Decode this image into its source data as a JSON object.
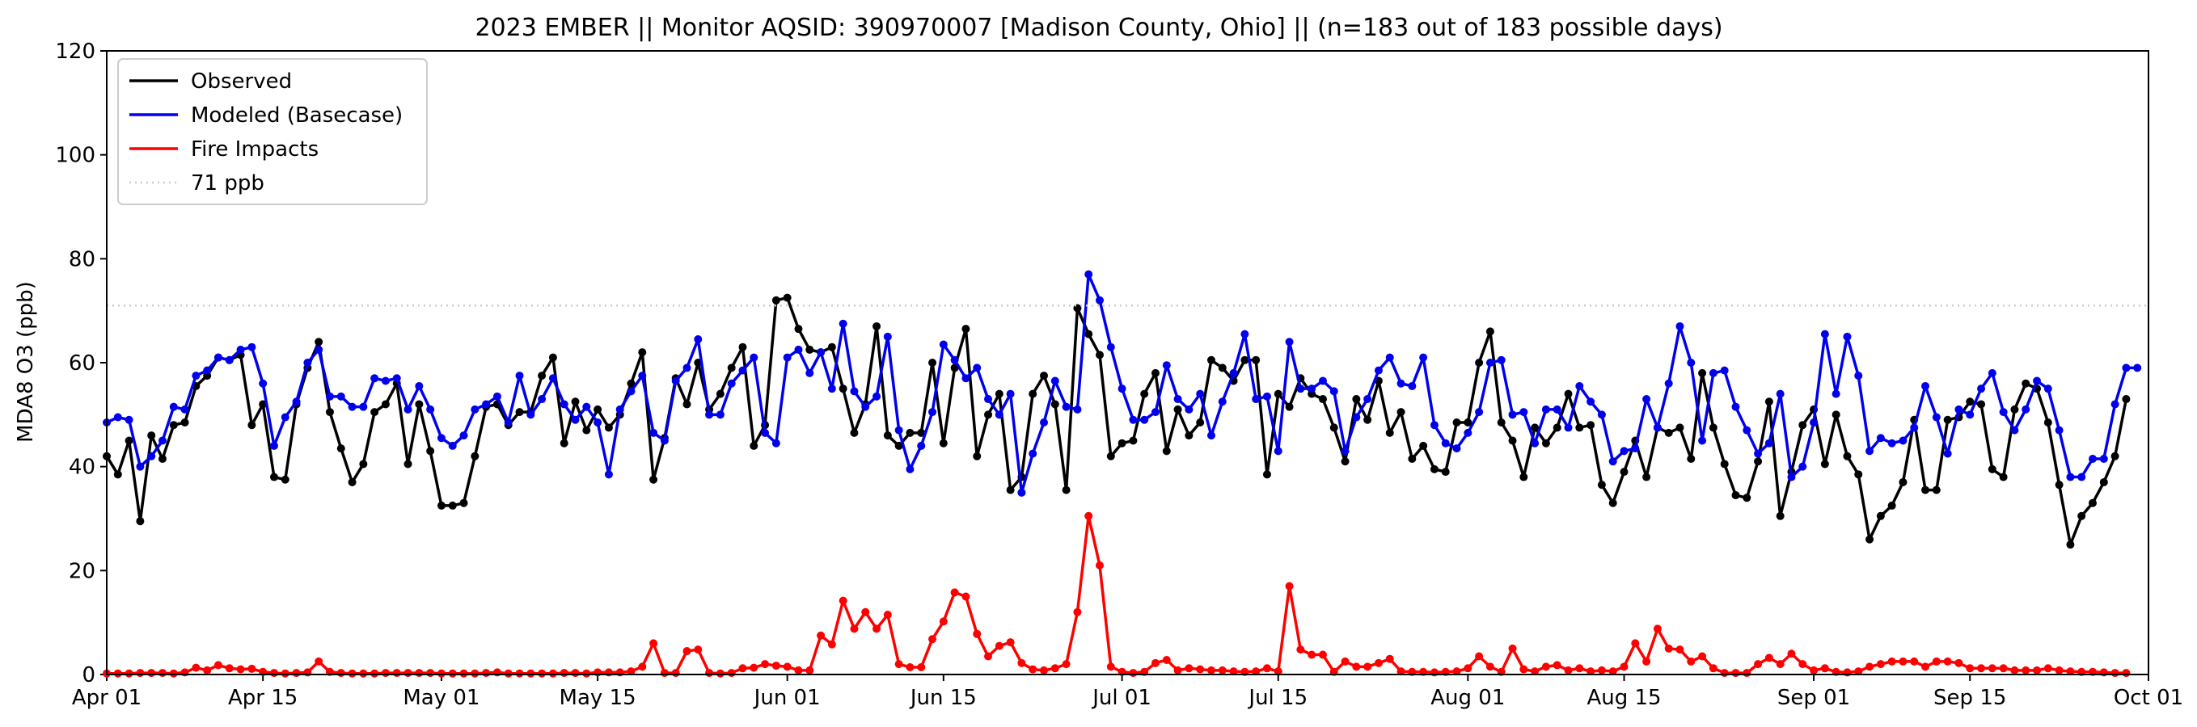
{
  "chart_data": {
    "type": "line",
    "title": "2023 EMBER || Monitor AQSID: 390970007 [Madison County, Ohio] || (n=183 out of 183 possible days)",
    "xlabel": "",
    "ylabel": "MDA8 O3 (ppb)",
    "x_start": "2023-04-01",
    "xlim": [
      "2023-04-01",
      "2023-10-01"
    ],
    "ylim": [
      0,
      120
    ],
    "yticks": [
      0,
      20,
      40,
      60,
      80,
      100,
      120
    ],
    "xticks": [
      {
        "label": "Apr 01",
        "day": 0
      },
      {
        "label": "Apr 15",
        "day": 14
      },
      {
        "label": "May 01",
        "day": 30
      },
      {
        "label": "May 15",
        "day": 44
      },
      {
        "label": "Jun 01",
        "day": 61
      },
      {
        "label": "Jun 15",
        "day": 75
      },
      {
        "label": "Jul 01",
        "day": 91
      },
      {
        "label": "Jul 15",
        "day": 105
      },
      {
        "label": "Aug 01",
        "day": 122
      },
      {
        "label": "Aug 15",
        "day": 136
      },
      {
        "label": "Sep 01",
        "day": 153
      },
      {
        "label": "Sep 15",
        "day": 167
      },
      {
        "label": "Oct 01",
        "day": 183
      }
    ],
    "grid": false,
    "legend_position": "upper-left",
    "series": [
      {
        "name": "Observed",
        "color": "#000000",
        "marker": true,
        "values": [
          42,
          38.5,
          45,
          29.5,
          46,
          41.5,
          48,
          48.5,
          55.5,
          57.5,
          61,
          60.5,
          61.5,
          48,
          52,
          38,
          37.5,
          52,
          59,
          64,
          50.5,
          43.5,
          37,
          40.5,
          50.5,
          52,
          56,
          40.5,
          52,
          43,
          32.5,
          32.5,
          33,
          42,
          51.5,
          52,
          48,
          50.5,
          50.5,
          57.5,
          61,
          44.5,
          52.5,
          47,
          51,
          47.5,
          50,
          56,
          62,
          37.5,
          45.5,
          57,
          52,
          60,
          51,
          54,
          59,
          63,
          44,
          48,
          72,
          72.5,
          66.5,
          62.5,
          62,
          63,
          55,
          46.5,
          52,
          67,
          46,
          44,
          46.5,
          46.5,
          60,
          44.5,
          59,
          66.5,
          42,
          50,
          54,
          35.5,
          38,
          54,
          57.5,
          52,
          35.5,
          70.5,
          65.5,
          61.5,
          42,
          44.5,
          45,
          54,
          58,
          43,
          51,
          46,
          48.5,
          60.5,
          59,
          56.5,
          60.5,
          60.5,
          38.5,
          54,
          51.5,
          57,
          54,
          53,
          47.5,
          41,
          53,
          49,
          56.5,
          46.5,
          50.5,
          41.5,
          44,
          39.5,
          39,
          48.5,
          48.5,
          60,
          66,
          48.5,
          45,
          38,
          47.5,
          44.5,
          47.5,
          54,
          47.5,
          48,
          36.5,
          33,
          39,
          45,
          38,
          47.5,
          46.5,
          47.5,
          41.5,
          58,
          47.5,
          40.5,
          34.5,
          34,
          41,
          52.5,
          30.5,
          39,
          48,
          51,
          40.5,
          50,
          42,
          38.5,
          26,
          30.5,
          32.5,
          37,
          49,
          35.5,
          35.5,
          49,
          49.5,
          52.5,
          52,
          39.5,
          38,
          51,
          56,
          55,
          48.5,
          36.5,
          25,
          30.5,
          33,
          37,
          42,
          53
        ]
      },
      {
        "name": "Modeled (Basecase)",
        "color": "#0000ee",
        "marker": true,
        "values": [
          48.5,
          49.5,
          49,
          40,
          42,
          45,
          51.5,
          51,
          57.5,
          58.5,
          61,
          60.5,
          62.5,
          63,
          56,
          44,
          49.5,
          52.5,
          60,
          62.5,
          53.5,
          53.5,
          51.5,
          51.5,
          57,
          56.5,
          57,
          51,
          55.5,
          51,
          45.5,
          44,
          46,
          51,
          52,
          53.5,
          48.5,
          57.5,
          50,
          53,
          57,
          52,
          49,
          51.5,
          48.5,
          38.5,
          51,
          54.5,
          57.5,
          46.5,
          45,
          56.5,
          59,
          64.5,
          50,
          50,
          56,
          58.5,
          61,
          46.5,
          44.5,
          61,
          62.5,
          58,
          62,
          55,
          67.5,
          54.5,
          51.5,
          53.5,
          65,
          47,
          39.5,
          44,
          50.5,
          63.5,
          60.5,
          57,
          59,
          53,
          50,
          54,
          35,
          42.5,
          48.5,
          56.5,
          51.5,
          51,
          77,
          72,
          63,
          55,
          49,
          49,
          50.5,
          59.5,
          53,
          51,
          54,
          46,
          52.5,
          58,
          65.5,
          53,
          53.5,
          43,
          64,
          55,
          55,
          56.5,
          54.5,
          43,
          49.5,
          53,
          58.5,
          61,
          56,
          55.5,
          61,
          48,
          44.5,
          43.5,
          46.5,
          50.5,
          60,
          60.5,
          50,
          50.5,
          44.5,
          51,
          51,
          47.5,
          55.5,
          52.5,
          50,
          41,
          43,
          43.5,
          53,
          47.5,
          56,
          67,
          60,
          45,
          58,
          58.5,
          51.5,
          47,
          42.5,
          44.5,
          54,
          38,
          40,
          48.5,
          65.5,
          54,
          65,
          57.5,
          43,
          45.5,
          44.5,
          45,
          47.5,
          55.5,
          49.5,
          42.5,
          51,
          50,
          55,
          58,
          50.5,
          47,
          51,
          56.5,
          55,
          47,
          38,
          38,
          41.5,
          41.5,
          52,
          59,
          59
        ]
      },
      {
        "name": "Fire Impacts",
        "color": "#ff0000",
        "marker": true,
        "values": [
          0.2,
          0.2,
          0.2,
          0.3,
          0.3,
          0.3,
          0.2,
          0.4,
          1.3,
          0.8,
          1.8,
          1.2,
          1,
          1.1,
          0.5,
          0.3,
          0.2,
          0.3,
          0.4,
          2.5,
          0.5,
          0.3,
          0.2,
          0.2,
          0.2,
          0.3,
          0.3,
          0.3,
          0.3,
          0.3,
          0.2,
          0.2,
          0.2,
          0.2,
          0.3,
          0.4,
          0.2,
          0.2,
          0.2,
          0.2,
          0.2,
          0.3,
          0.3,
          0.2,
          0.4,
          0.4,
          0.4,
          0.6,
          1.5,
          6,
          0.3,
          0.3,
          4.5,
          4.8,
          0.3,
          0.2,
          0.3,
          1.2,
          1.3,
          2,
          1.7,
          1.5,
          0.8,
          0.8,
          7.5,
          5.8,
          14.2,
          8.8,
          12,
          8.8,
          11.5,
          2,
          1.4,
          1.4,
          6.8,
          10.2,
          15.8,
          15,
          7.8,
          3.5,
          5.5,
          6.2,
          2.2,
          1,
          0.8,
          1.2,
          2,
          12,
          30.5,
          21,
          1.5,
          0.5,
          0.3,
          0.5,
          2.2,
          2.8,
          0.8,
          1.2,
          1,
          0.8,
          0.8,
          0.6,
          0.5,
          0.6,
          1.2,
          0.6,
          17,
          4.8,
          3.8,
          3.8,
          0.5,
          2.5,
          1.5,
          1.5,
          2.2,
          3,
          0.6,
          0.5,
          0.5,
          0.4,
          0.5,
          0.6,
          1.2,
          3.5,
          1.5,
          0.5,
          5,
          1,
          0.6,
          1.5,
          1.8,
          0.8,
          1.2,
          0.6,
          0.8,
          0.6,
          1.5,
          6,
          2.5,
          8.8,
          5,
          4.8,
          2.5,
          3.5,
          1.2,
          0.3,
          0.3,
          0.3,
          2,
          3.2,
          2,
          4,
          2,
          0.8,
          1.2,
          0.5,
          0.4,
          0.6,
          1.5,
          2,
          2.5,
          2.5,
          2.5,
          1.5,
          2.5,
          2.5,
          2.2,
          1.2,
          1.2,
          1.2,
          1.2,
          0.8,
          0.8,
          0.8,
          1.2,
          0.8,
          0.6,
          0.5,
          0.5,
          0.4,
          0.3,
          0.3
        ]
      },
      {
        "name": "71 ppb",
        "color": "#cccccc",
        "style": "dotted",
        "marker": false,
        "constant": 71
      }
    ]
  }
}
